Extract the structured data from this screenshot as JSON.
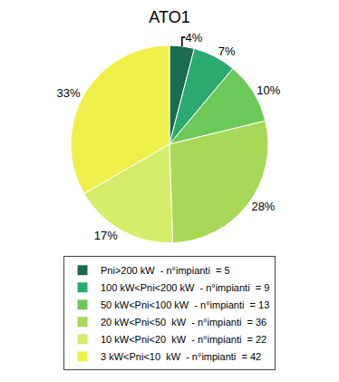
{
  "chart_data": {
    "type": "pie",
    "title": "ATO1",
    "categories": [
      "Pni>200 kW  - n°impianti  = 5",
      "100 kW<Pni<200 kW  - n°impianti  = 9",
      "50 kW<Pni<100 kW  - n°impianti  = 13",
      "20 kW<Pni<50  kW  - n°impianti  = 36",
      "10 kW<Pni<20  kW  - n°impianti  = 22",
      "3 kW<Pni<10  kW  - n°impianti  = 42"
    ],
    "values": [
      4,
      7,
      10,
      28,
      17,
      33
    ],
    "value_labels": [
      "4%",
      "7%",
      "10%",
      "28%",
      "17%",
      "33%"
    ],
    "data_labels": true,
    "colors": [
      "#1a6b50",
      "#2aaa70",
      "#6dc85a",
      "#a8d858",
      "#d4ed6a",
      "#eef04a"
    ],
    "legend": "bottom"
  }
}
